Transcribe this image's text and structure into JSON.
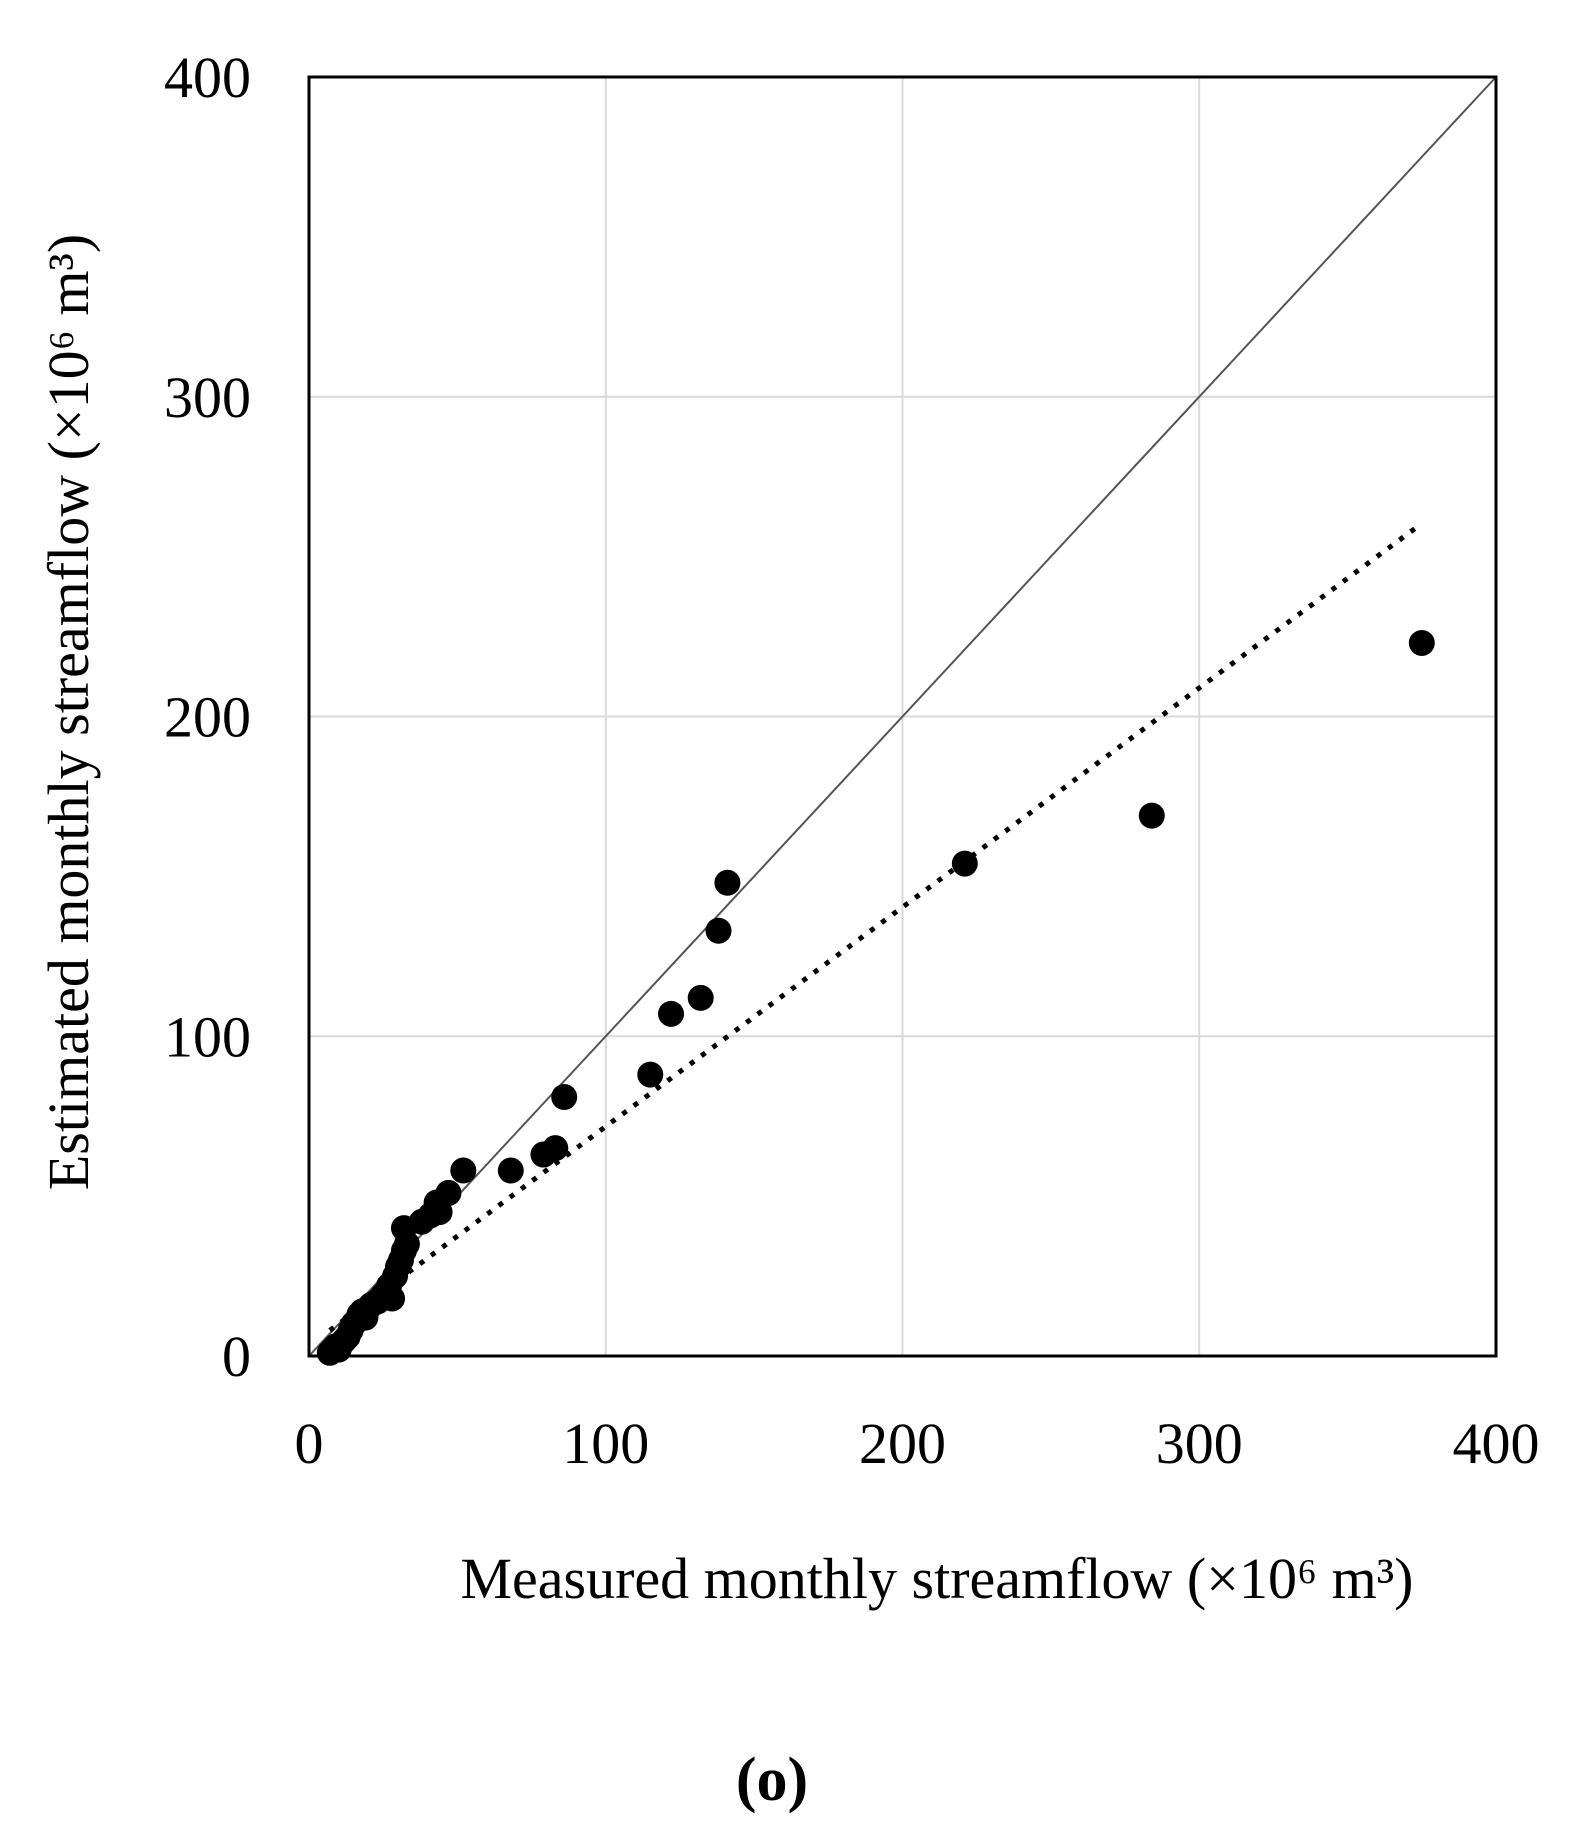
{
  "chart_data": {
    "type": "scatter",
    "title": "",
    "panel_label": "(o)",
    "xlabel": "Measured monthly streamflow (×10⁶ m³)",
    "ylabel": "Estimated monthly streamflow (×10⁶ m³)",
    "xlim": [
      0,
      400
    ],
    "ylim": [
      0,
      400
    ],
    "x_ticks": [
      0,
      100,
      200,
      300,
      400
    ],
    "y_ticks": [
      0,
      100,
      200,
      300,
      400
    ],
    "x_tick_labels": [
      "0",
      "100",
      "200",
      "300",
      "400"
    ],
    "y_tick_labels": [
      "0",
      "100",
      "200",
      "300",
      "400"
    ],
    "grid": true,
    "legend": "none",
    "series": [
      {
        "name": "Monthly streamflow",
        "marker": "filled-circle",
        "color": "#000000",
        "points": [
          [
            7,
            1
          ],
          [
            8,
            2
          ],
          [
            9,
            3
          ],
          [
            10,
            2
          ],
          [
            11,
            4
          ],
          [
            12,
            5
          ],
          [
            13,
            6
          ],
          [
            14,
            8
          ],
          [
            15,
            10
          ],
          [
            16,
            11
          ],
          [
            17,
            13
          ],
          [
            18,
            14
          ],
          [
            19,
            12
          ],
          [
            20,
            15
          ],
          [
            21,
            16
          ],
          [
            23,
            17
          ],
          [
            25,
            19
          ],
          [
            27,
            22
          ],
          [
            28,
            18
          ],
          [
            29,
            25
          ],
          [
            30,
            28
          ],
          [
            31,
            30
          ],
          [
            32,
            33
          ],
          [
            32,
            40
          ],
          [
            33,
            35
          ],
          [
            38,
            42
          ],
          [
            41,
            44
          ],
          [
            43,
            48
          ],
          [
            44,
            45
          ],
          [
            47,
            51
          ],
          [
            52,
            58
          ],
          [
            68,
            58
          ],
          [
            79,
            63
          ],
          [
            83,
            65
          ],
          [
            86,
            81
          ],
          [
            115,
            88
          ],
          [
            122,
            107
          ],
          [
            132,
            112
          ],
          [
            138,
            133
          ],
          [
            141,
            148
          ],
          [
            221,
            154
          ],
          [
            284,
            169
          ],
          [
            375,
            223
          ]
        ]
      }
    ],
    "reference_lines": [
      {
        "name": "1:1 line",
        "style": "solid",
        "color": "#555555",
        "from": [
          0,
          0
        ],
        "to": [
          400,
          400
        ]
      },
      {
        "name": "Linear trend",
        "style": "dotted",
        "color": "#000000",
        "from": [
          7,
          8
        ],
        "to": [
          373,
          259
        ]
      }
    ]
  }
}
